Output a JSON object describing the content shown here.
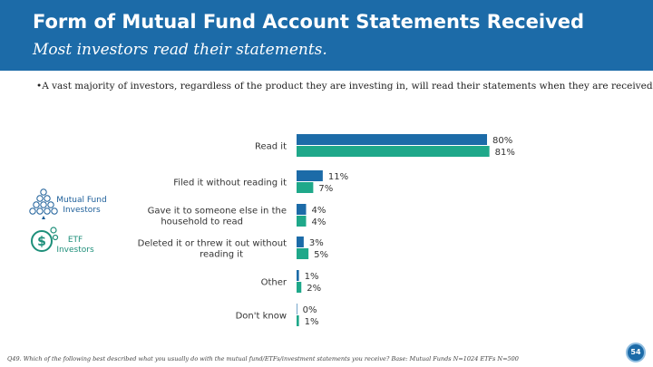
{
  "header": {
    "title": "Form of Mutual Fund Account Statements Received",
    "subtitle": "Most investors read their statements."
  },
  "bullet": "•A vast majority of investors, regardless of the product they are investing in, will read their statements when they are received.",
  "legend": {
    "mutual_fund": "Mutual Fund Investors",
    "etf": "ETF Investors"
  },
  "colors": {
    "header": "#1c6ba8",
    "mutual_fund": "#1c6ba8",
    "etf": "#1fa88a"
  },
  "icons": {
    "mutual_fund": "coin-pyramid-icon",
    "etf": "dollar-coin-icon"
  },
  "footnote": "Q49. Which of the following best described what you usually do with the mutual fund/ETFs/investment statements you receive? Base: Mutual Funds N=1024 ETFs N=500",
  "page_number": "54",
  "chart_data": {
    "type": "bar",
    "orientation": "horizontal",
    "categories": [
      "Read it",
      "Filed it without reading it",
      "Gave it to someone else in the household to read",
      "Deleted it or threw it out without reading it",
      "Other",
      "Don't know"
    ],
    "series": [
      {
        "name": "Mutual Fund Investors",
        "values": [
          80,
          11,
          4,
          3,
          1,
          0
        ],
        "labels": [
          "80%",
          "11%",
          "4%",
          "3%",
          "1%",
          "0%"
        ]
      },
      {
        "name": "ETF Investors",
        "values": [
          81,
          7,
          4,
          5,
          2,
          1
        ],
        "labels": [
          "81%",
          "7%",
          "4%",
          "5%",
          "2%",
          "1%"
        ]
      }
    ],
    "xlim": [
      0,
      100
    ],
    "grid": false,
    "legend_position": "left"
  }
}
